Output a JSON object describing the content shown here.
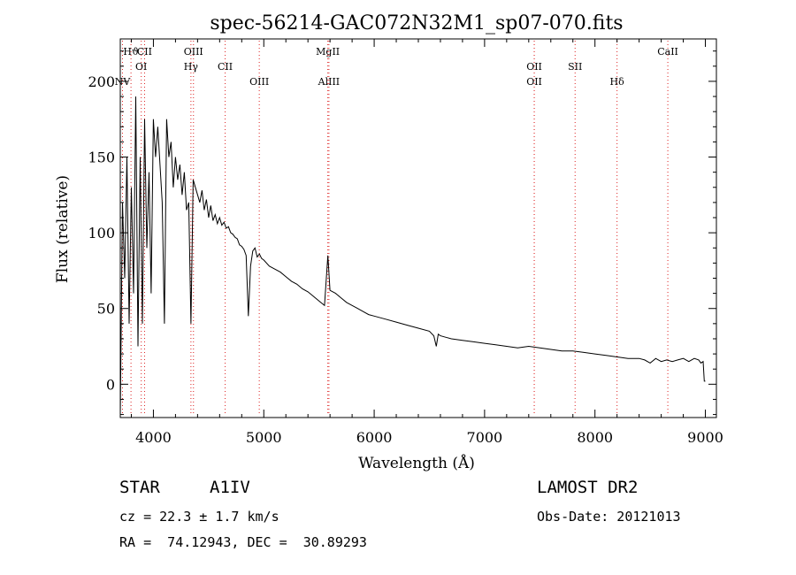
{
  "chart_data": {
    "type": "line",
    "title": "spec-56214-GAC072N32M1_sp07-070.fits",
    "xlabel": "Wavelength (Å)",
    "ylabel": "Flux (relative)",
    "xlim": [
      3700,
      9100
    ],
    "ylim": [
      -22,
      228
    ],
    "x_ticks": [
      4000,
      5000,
      6000,
      7000,
      8000,
      9000
    ],
    "y_ticks": [
      0,
      50,
      100,
      150,
      200
    ],
    "grid": false,
    "line_color": "#000000",
    "marker_color": "#dd2222",
    "spectral_lines": [
      {
        "name": "Hϑ",
        "wavelength": 3797,
        "row": 0
      },
      {
        "name": "NV",
        "wavelength": 3720,
        "row": 2
      },
      {
        "name": "CII",
        "wavelength": 3920,
        "row": 0
      },
      {
        "name": "OI",
        "wavelength": 3890,
        "row": 1
      },
      {
        "name": "OIII",
        "wavelength": 4363,
        "row": 0
      },
      {
        "name": "Hγ",
        "wavelength": 4340,
        "row": 1
      },
      {
        "name": "CII",
        "wavelength": 4650,
        "row": 1
      },
      {
        "name": "OIII",
        "wavelength": 4959,
        "row": 2
      },
      {
        "name": "MgII",
        "wavelength": 5580,
        "row": 0
      },
      {
        "name": "AlIII",
        "wavelength": 5590,
        "row": 2
      },
      {
        "name": "OII",
        "wavelength": 7450,
        "row": 1
      },
      {
        "name": "OII",
        "wavelength": 7450,
        "row": 2
      },
      {
        "name": "SII",
        "wavelength": 7820,
        "row": 1
      },
      {
        "name": "Hδ",
        "wavelength": 8200,
        "row": 2
      },
      {
        "name": "CaII",
        "wavelength": 8660,
        "row": 0
      }
    ],
    "x": [
      3700,
      3720,
      3740,
      3760,
      3780,
      3800,
      3820,
      3840,
      3860,
      3880,
      3900,
      3920,
      3940,
      3960,
      3980,
      4000,
      4020,
      4040,
      4060,
      4080,
      4100,
      4120,
      4140,
      4160,
      4180,
      4200,
      4220,
      4240,
      4260,
      4280,
      4300,
      4320,
      4340,
      4360,
      4380,
      4400,
      4420,
      4440,
      4460,
      4480,
      4500,
      4520,
      4540,
      4560,
      4580,
      4600,
      4620,
      4640,
      4660,
      4680,
      4700,
      4720,
      4740,
      4760,
      4780,
      4800,
      4820,
      4840,
      4860,
      4880,
      4900,
      4920,
      4940,
      4960,
      4980,
      5000,
      5050,
      5100,
      5150,
      5200,
      5250,
      5300,
      5350,
      5400,
      5450,
      5500,
      5550,
      5580,
      5600,
      5650,
      5700,
      5750,
      5800,
      5850,
      5900,
      5950,
      6000,
      6100,
      6200,
      6300,
      6400,
      6500,
      6540,
      6563,
      6580,
      6600,
      6650,
      6700,
      6800,
      6900,
      7000,
      7100,
      7200,
      7300,
      7400,
      7500,
      7600,
      7700,
      7800,
      7900,
      8000,
      8100,
      8200,
      8300,
      8400,
      8450,
      8500,
      8550,
      8600,
      8650,
      8700,
      8750,
      8800,
      8850,
      8900,
      8940,
      8960,
      8980,
      8990,
      9000
    ],
    "y": [
      -20,
      120,
      70,
      150,
      40,
      130,
      60,
      190,
      25,
      150,
      40,
      175,
      90,
      140,
      60,
      175,
      150,
      170,
      145,
      120,
      40,
      175,
      150,
      160,
      130,
      150,
      135,
      145,
      125,
      140,
      115,
      120,
      40,
      135,
      130,
      125,
      120,
      128,
      115,
      122,
      110,
      118,
      108,
      112,
      106,
      110,
      105,
      107,
      103,
      104,
      100,
      99,
      97,
      96,
      92,
      91,
      89,
      85,
      45,
      78,
      88,
      90,
      84,
      86,
      83,
      82,
      78,
      76,
      74,
      71,
      68,
      66,
      63,
      61,
      58,
      55,
      52,
      85,
      62,
      60,
      57,
      54,
      52,
      50,
      48,
      46,
      45,
      43,
      41,
      39,
      37,
      35,
      32,
      25,
      33,
      32,
      31,
      30,
      29,
      28,
      27,
      26,
      25,
      24,
      25,
      24,
      23,
      22,
      22,
      21,
      20,
      19,
      18,
      17,
      17,
      16,
      14,
      17,
      15,
      16,
      15,
      16,
      17,
      15,
      17,
      16,
      14,
      15,
      2,
      2
    ]
  },
  "info": {
    "object_class": "STAR",
    "subclass": "A1IV",
    "cz": "cz = 22.3 ± 1.7 km/s",
    "ra_dec": "RA =  74.12943, DEC =  30.89293",
    "survey": "LAMOST DR2",
    "obs_date": "Obs-Date: 20121013"
  }
}
